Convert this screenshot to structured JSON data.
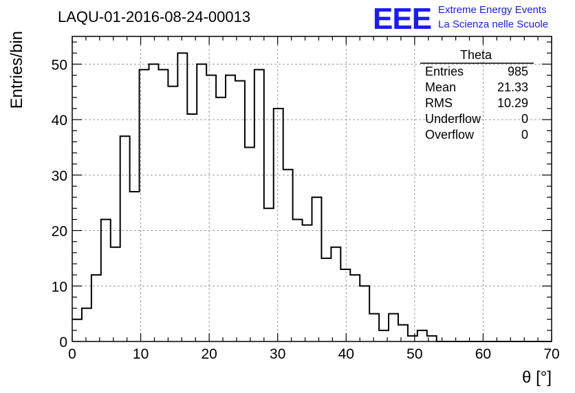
{
  "header": {
    "title": "LAQU-01-2016-08-24-00013",
    "logo_text": "EEE",
    "logo_line1": "Extreme Energy Events",
    "logo_line2": "La Scienza nelle Scuole"
  },
  "stats_box": {
    "title": "Theta",
    "rows": [
      {
        "label": "Entries",
        "value": "985"
      },
      {
        "label": "Mean",
        "value": "21.33"
      },
      {
        "label": "RMS",
        "value": "10.29"
      },
      {
        "label": "Underflow",
        "value": "0"
      },
      {
        "label": "Overflow",
        "value": "0"
      }
    ]
  },
  "chart_data": {
    "type": "bar",
    "histogram": true,
    "title": "LAQU-01-2016-08-24-00013",
    "xlabel": "θ [°]",
    "ylabel": "Entries/bin",
    "xlim": [
      0,
      70
    ],
    "ylim": [
      0,
      55
    ],
    "grid": true,
    "bin_width": 1.4,
    "x_ticks": [
      0,
      10,
      20,
      30,
      40,
      50,
      60,
      70
    ],
    "y_ticks": [
      0,
      10,
      20,
      30,
      40,
      50
    ],
    "values": [
      4,
      6,
      12,
      22,
      17,
      37,
      27,
      49,
      50,
      49,
      46,
      52,
      41,
      50,
      48,
      44,
      48,
      47,
      35,
      49,
      24,
      42,
      31,
      22,
      21,
      26,
      15,
      17,
      13,
      12,
      10,
      5,
      2,
      5,
      3,
      1,
      2,
      1,
      0,
      0,
      0,
      0,
      0,
      0,
      0,
      0,
      0,
      0,
      0,
      0
    ],
    "line_color": "#000000",
    "grid_color": "#9a9a9a"
  }
}
